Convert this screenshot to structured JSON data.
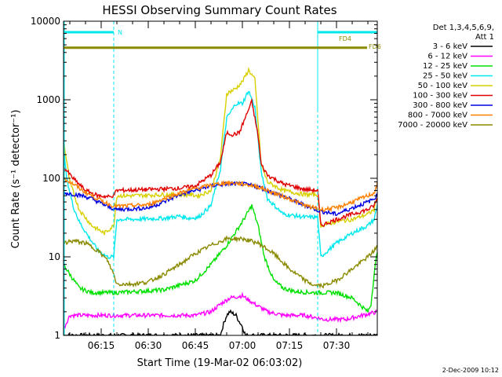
{
  "chart_data": {
    "type": "line",
    "title": "HESSI Observing Summary Count Rates",
    "xlabel": "Start Time (19-Mar-02 06:03:02)",
    "ylabel": "Count Rate (s⁻¹ detector⁻¹)",
    "y_scale": "log",
    "ylim": [
      1,
      10000
    ],
    "xlim_minutes": [
      363,
      463
    ],
    "y_ticks": [
      {
        "value": 1,
        "label": "1"
      },
      {
        "value": 10,
        "label": "10"
      },
      {
        "value": 100,
        "label": "100"
      },
      {
        "value": 1000,
        "label": "1000"
      },
      {
        "value": 10000,
        "label": "10000"
      }
    ],
    "x_ticks": [
      {
        "minute": 375,
        "label": "06:15"
      },
      {
        "minute": 390,
        "label": "06:30"
      },
      {
        "minute": 405,
        "label": "06:45"
      },
      {
        "minute": 420,
        "label": "07:00"
      },
      {
        "minute": 435,
        "label": "07:15"
      },
      {
        "minute": 450,
        "label": "07:30"
      }
    ],
    "legend": {
      "position": "right",
      "header": [
        "Det 1,3,4,5,6,9,",
        "Att 1"
      ],
      "entries": [
        {
          "label": "3 - 6 keV",
          "color": "#000000"
        },
        {
          "label": "6 - 12 keV",
          "color": "#ff00ff"
        },
        {
          "label": "12 - 25 keV",
          "color": "#00e000"
        },
        {
          "label": "25 - 50 keV",
          "color": "#00e8ee"
        },
        {
          "label": "50 - 100 keV",
          "color": "#d8d000"
        },
        {
          "label": "100 - 300 keV",
          "color": "#e00000"
        },
        {
          "label": "300 - 800 keV",
          "color": "#0000e0"
        },
        {
          "label": "800 - 7000 keV",
          "color": "#ff8000"
        },
        {
          "label": "7000 - 20000 keV",
          "color": "#8a8a00"
        }
      ]
    },
    "annotations": {
      "night_label": "N",
      "fd_labels": [
        "FD4",
        "FD6"
      ],
      "timestamp": "2-Dec-2009 10:12"
    },
    "night_intervals": [
      [
        363,
        379
      ],
      [
        444,
        463
      ]
    ],
    "series": [
      {
        "name": "3 - 6 keV",
        "color": "#000000",
        "x": [
          363,
          413,
          414,
          415,
          416,
          417,
          418,
          419,
          420,
          421,
          463
        ],
        "y": [
          1,
          1,
          1.4,
          1.8,
          2.0,
          1.9,
          1.8,
          1.5,
          1.3,
          1.0,
          1
        ]
      },
      {
        "name": "6 - 12 keV",
        "color": "#ff00ff",
        "x": [
          363,
          365,
          378,
          380,
          395,
          405,
          410,
          413,
          416,
          420,
          424,
          428,
          433,
          440,
          446,
          453,
          463
        ],
        "y": [
          1.2,
          1.8,
          1.8,
          1.8,
          1.8,
          1.8,
          2.0,
          2.5,
          3.0,
          3.2,
          2.5,
          2.0,
          1.8,
          1.8,
          1.6,
          1.6,
          2.0
        ]
      },
      {
        "name": "12 - 25 keV",
        "color": "#00e000",
        "x": [
          363,
          365,
          368,
          372,
          378,
          380,
          395,
          405,
          410,
          415,
          420,
          423,
          425,
          427,
          430,
          433,
          437,
          443,
          446,
          450,
          455,
          460,
          461,
          462,
          463
        ],
        "y": [
          8,
          6,
          4,
          3.5,
          3.5,
          3.5,
          3.8,
          5,
          8,
          14,
          28,
          45,
          25,
          10,
          5,
          4,
          3.6,
          3.5,
          3.5,
          3.5,
          3.0,
          2.0,
          2.5,
          6,
          12
        ]
      },
      {
        "name": "25 - 50 keV",
        "color": "#00e8ee",
        "x": [
          363,
          364,
          366,
          368,
          371,
          374,
          377,
          379,
          380,
          385,
          395,
          400,
          403,
          406,
          410,
          413,
          415,
          418,
          420,
          422,
          424,
          426,
          428,
          433,
          440,
          444,
          445,
          450,
          455,
          460,
          462,
          463
        ],
        "y": [
          250,
          100,
          45,
          28,
          18,
          12,
          10,
          10,
          30,
          30,
          31,
          33,
          31,
          32,
          45,
          130,
          580,
          900,
          900,
          1300,
          800,
          120,
          55,
          35,
          32,
          32,
          10,
          15,
          20,
          25,
          30,
          45
        ]
      },
      {
        "name": "50 - 100 keV",
        "color": "#d8d000",
        "x": [
          363,
          365,
          368,
          372,
          376,
          379,
          380,
          385,
          395,
          403,
          406,
          410,
          413,
          415,
          418,
          420,
          422,
          424,
          426,
          428,
          433,
          440,
          444,
          445,
          450,
          455,
          460,
          462,
          463
        ],
        "y": [
          300,
          90,
          40,
          25,
          20,
          25,
          60,
          60,
          62,
          62,
          60,
          70,
          180,
          1200,
          1400,
          1700,
          2400,
          1800,
          150,
          90,
          70,
          62,
          62,
          25,
          28,
          30,
          35,
          40,
          60
        ]
      },
      {
        "name": "100 - 300 keV",
        "color": "#e00000",
        "x": [
          363,
          366,
          370,
          374,
          378,
          379,
          380,
          390,
          400,
          405,
          410,
          413,
          415,
          417,
          419,
          421,
          423,
          425,
          426,
          428,
          433,
          440,
          444,
          445,
          450,
          455,
          460,
          462,
          463
        ],
        "y": [
          140,
          100,
          70,
          60,
          58,
          62,
          70,
          72,
          75,
          80,
          110,
          160,
          380,
          360,
          380,
          600,
          950,
          350,
          150,
          110,
          85,
          72,
          70,
          25,
          30,
          35,
          40,
          45,
          55
        ]
      },
      {
        "name": "300 - 800 keV",
        "color": "#0000e0",
        "x": [
          363,
          366,
          369,
          372,
          375,
          378,
          380,
          390,
          395,
          400,
          405,
          410,
          415,
          420,
          425,
          430,
          435,
          440,
          445,
          450,
          455,
          460,
          462,
          463
        ],
        "y": [
          65,
          63,
          60,
          55,
          48,
          42,
          40,
          42,
          50,
          62,
          70,
          80,
          85,
          85,
          78,
          65,
          55,
          45,
          38,
          35,
          42,
          50,
          55,
          62
        ]
      },
      {
        "name": "800 - 7000 keV",
        "color": "#ff8000",
        "x": [
          363,
          366,
          369,
          372,
          375,
          378,
          380,
          390,
          395,
          400,
          405,
          410,
          415,
          420,
          425,
          430,
          435,
          440,
          445,
          450,
          455,
          460,
          462,
          463
        ],
        "y": [
          100,
          85,
          70,
          60,
          52,
          46,
          44,
          46,
          55,
          65,
          74,
          82,
          88,
          85,
          78,
          65,
          55,
          45,
          40,
          42,
          50,
          60,
          65,
          85
        ]
      },
      {
        "name": "7000 - 20000 keV",
        "color": "#8a8a00",
        "x": [
          363,
          366,
          370,
          374,
          377,
          379,
          380,
          385,
          390,
          395,
          400,
          405,
          410,
          415,
          420,
          425,
          430,
          435,
          440,
          443,
          446,
          450,
          455,
          460,
          462,
          463
        ],
        "y": [
          15,
          16,
          15,
          12,
          9,
          6,
          4.5,
          4.5,
          4.8,
          6,
          8,
          11,
          14,
          17,
          17,
          15,
          11,
          7,
          5,
          4.3,
          4.3,
          5,
          7,
          10,
          12,
          14
        ]
      }
    ],
    "fd_lines": [
      {
        "label": "FD4",
        "value": 4600,
        "color": "#8a8a00"
      },
      {
        "label": "FD6",
        "value": 4600,
        "color": "#8a8a00"
      }
    ]
  }
}
